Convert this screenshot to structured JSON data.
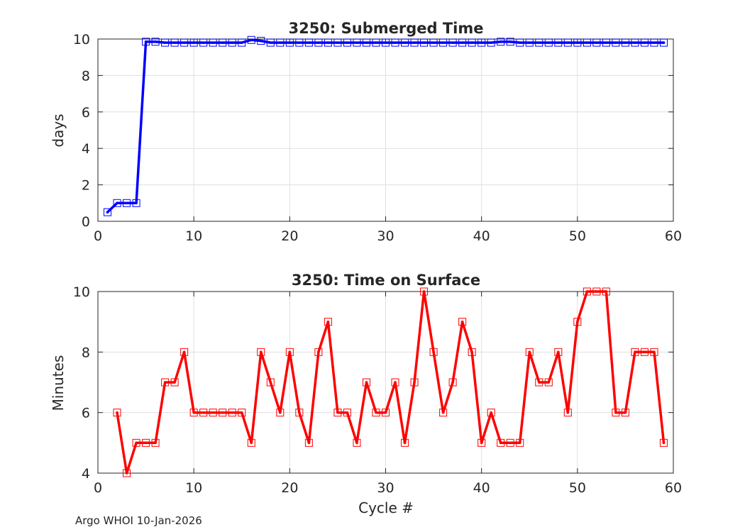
{
  "footer": {
    "text": "Argo WHOI 10-Jan-2026"
  },
  "chart_data": [
    {
      "type": "line",
      "title": "3250: Submerged Time",
      "xlabel": "",
      "ylabel": "days",
      "xlim": [
        0,
        60
      ],
      "ylim": [
        0,
        10
      ],
      "xticks": [
        0,
        10,
        20,
        30,
        40,
        50,
        60
      ],
      "yticks": [
        0,
        2,
        4,
        6,
        8,
        10
      ],
      "grid": true,
      "color": "#0000ff",
      "marker": "square",
      "series": [
        {
          "name": "Submerged Time",
          "x": [
            1,
            2,
            3,
            4,
            5,
            6,
            7,
            8,
            9,
            10,
            11,
            12,
            13,
            14,
            15,
            16,
            17,
            18,
            19,
            20,
            21,
            22,
            23,
            24,
            25,
            26,
            27,
            28,
            29,
            30,
            31,
            32,
            33,
            34,
            35,
            36,
            37,
            38,
            39,
            40,
            41,
            42,
            43,
            44,
            45,
            46,
            47,
            48,
            49,
            50,
            51,
            52,
            53,
            54,
            55,
            56,
            57,
            58,
            59
          ],
          "values": [
            0.5,
            1.0,
            1.0,
            1.0,
            9.85,
            9.85,
            9.8,
            9.8,
            9.8,
            9.8,
            9.8,
            9.8,
            9.8,
            9.8,
            9.8,
            9.95,
            9.9,
            9.8,
            9.8,
            9.8,
            9.8,
            9.8,
            9.8,
            9.8,
            9.8,
            9.8,
            9.8,
            9.8,
            9.8,
            9.8,
            9.8,
            9.8,
            9.8,
            9.8,
            9.8,
            9.8,
            9.8,
            9.8,
            9.8,
            9.8,
            9.8,
            9.85,
            9.85,
            9.8,
            9.8,
            9.8,
            9.8,
            9.8,
            9.8,
            9.8,
            9.8,
            9.8,
            9.8,
            9.8,
            9.8,
            9.8,
            9.8,
            9.8,
            9.8
          ]
        }
      ]
    },
    {
      "type": "line",
      "title": "3250: Time on Surface",
      "xlabel": "Cycle #",
      "ylabel": "Minutes",
      "xlim": [
        0,
        60
      ],
      "ylim": [
        4,
        10
      ],
      "xticks": [
        0,
        10,
        20,
        30,
        40,
        50,
        60
      ],
      "yticks": [
        4,
        6,
        8,
        10
      ],
      "grid": true,
      "color": "#ff0000",
      "marker": "square",
      "series": [
        {
          "name": "Time on Surface",
          "x": [
            2,
            3,
            4,
            5,
            6,
            7,
            8,
            9,
            10,
            11,
            12,
            13,
            14,
            15,
            16,
            17,
            18,
            19,
            20,
            21,
            22,
            23,
            24,
            25,
            26,
            27,
            28,
            29,
            30,
            31,
            32,
            33,
            34,
            35,
            36,
            37,
            38,
            39,
            40,
            41,
            42,
            43,
            44,
            45,
            46,
            47,
            48,
            49,
            50,
            51,
            52,
            53,
            54,
            55,
            56,
            57,
            58,
            59
          ],
          "values": [
            6,
            4,
            5,
            5,
            5,
            7,
            7,
            8,
            6,
            6,
            6,
            6,
            6,
            6,
            5,
            8,
            7,
            6,
            8,
            6,
            5,
            8,
            9,
            6,
            6,
            5,
            7,
            6,
            6,
            7,
            5,
            7,
            10,
            8,
            6,
            7,
            9,
            8,
            5,
            6,
            5,
            5,
            5,
            8,
            7,
            7,
            8,
            6,
            9,
            10,
            10,
            10,
            6,
            6,
            8,
            8,
            8,
            5
          ]
        }
      ]
    }
  ]
}
